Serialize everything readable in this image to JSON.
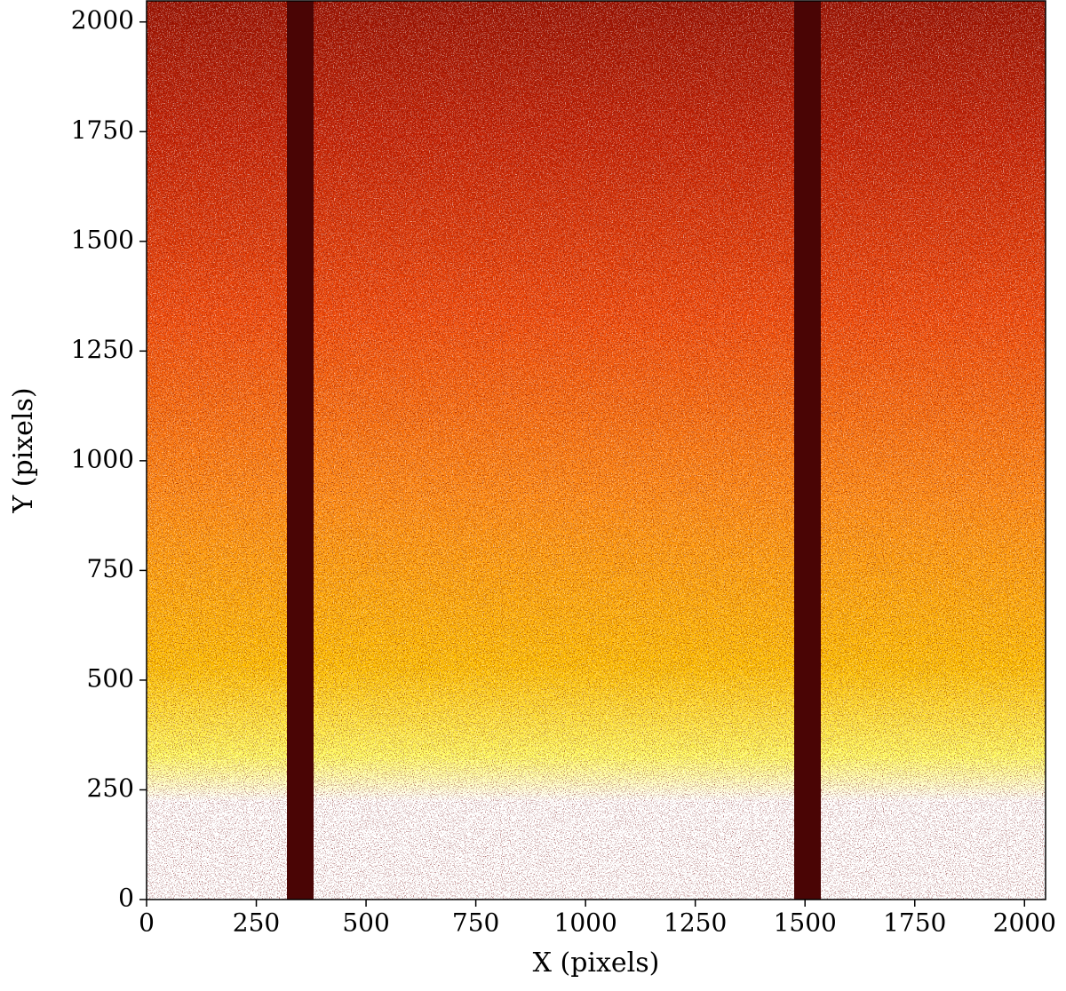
{
  "chart_data": {
    "type": "image",
    "x_label": "X (pixels)",
    "y_label": "Y (pixels)",
    "xlim": [
      0,
      2048
    ],
    "ylim": [
      0,
      2048
    ],
    "xticks": [
      0,
      250,
      500,
      750,
      1000,
      1250,
      1500,
      1750,
      2000
    ],
    "yticks": [
      0,
      250,
      500,
      750,
      1000,
      1250,
      1500,
      1750,
      2000
    ]
  }
}
